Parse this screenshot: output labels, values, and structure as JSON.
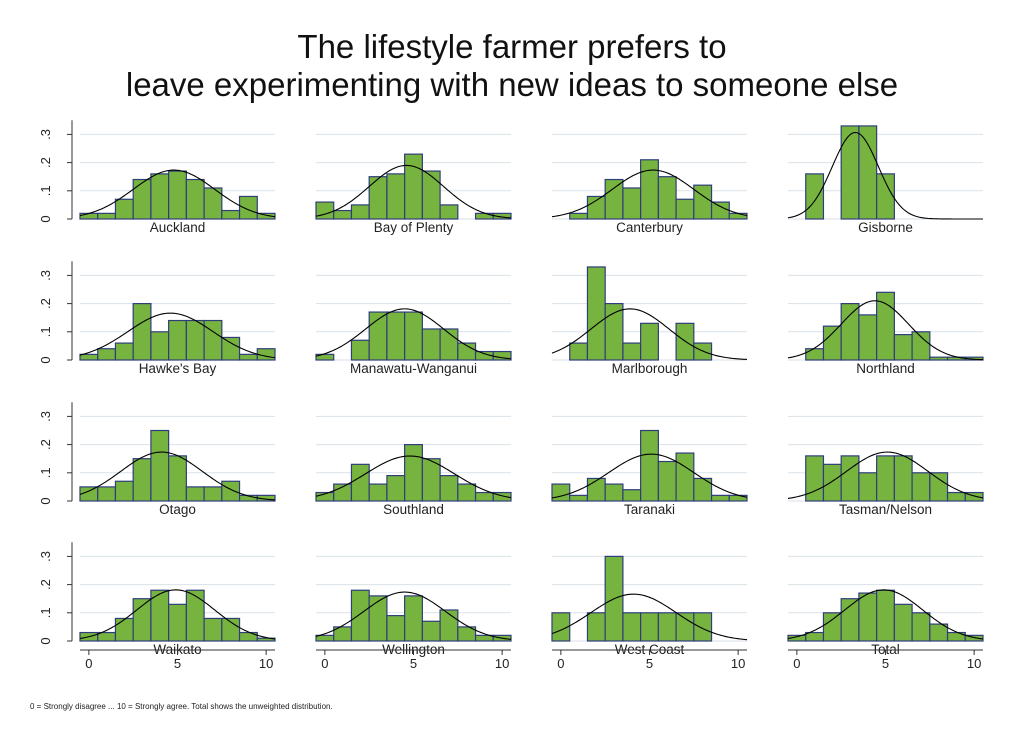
{
  "title_lines": [
    "The lifestyle farmer prefers to",
    "leave experimenting with new ideas to someone else"
  ],
  "footnote": "0 = Strongly disagree ... 10 = Strongly agree. Total shows the unweighted distribution.",
  "colors": {
    "bar_fill": "#77b43f",
    "bar_stroke": "#2f3e7a",
    "curve": "#000000",
    "grid": "#d9e2ea"
  },
  "chart_data": {
    "type": "bar",
    "subtype": "histogram with fitted normal density curve, 4x4 grid of panels",
    "x_categories": [
      0,
      1,
      2,
      3,
      4,
      5,
      6,
      7,
      8,
      9,
      10
    ],
    "xlim": [
      -0.5,
      10.5
    ],
    "ylim": [
      0,
      0.35
    ],
    "x_ticks": [
      "0",
      "5",
      "10"
    ],
    "y_ticks": [
      "0",
      ".1",
      ".2",
      ".3"
    ],
    "grid": true,
    "panels": [
      {
        "name": "Auckland",
        "values": [
          0.02,
          0.02,
          0.07,
          0.14,
          0.16,
          0.17,
          0.14,
          0.11,
          0.03,
          0.08,
          0.02
        ],
        "mean": 4.8,
        "sd": 2.3
      },
      {
        "name": "Bay of Plenty",
        "values": [
          0.06,
          0.03,
          0.05,
          0.15,
          0.16,
          0.23,
          0.17,
          0.05,
          0.0,
          0.02,
          0.02
        ],
        "mean": 4.6,
        "sd": 2.1
      },
      {
        "name": "Canterbury",
        "values": [
          0.0,
          0.02,
          0.08,
          0.14,
          0.11,
          0.21,
          0.15,
          0.07,
          0.12,
          0.06,
          0.02
        ],
        "mean": 5.2,
        "sd": 2.3
      },
      {
        "name": "Gisborne",
        "values": [
          0.0,
          0.16,
          0.0,
          0.33,
          0.33,
          0.16,
          0.0,
          0.0,
          0.0,
          0.0,
          0.0
        ],
        "mean": 3.3,
        "sd": 1.3
      },
      {
        "name": "Hawke's Bay",
        "values": [
          0.02,
          0.04,
          0.06,
          0.2,
          0.1,
          0.14,
          0.14,
          0.14,
          0.08,
          0.02,
          0.04
        ],
        "mean": 4.6,
        "sd": 2.4
      },
      {
        "name": "Manawatu-Wanganui",
        "values": [
          0.02,
          0.0,
          0.07,
          0.17,
          0.17,
          0.17,
          0.11,
          0.11,
          0.06,
          0.03,
          0.03
        ],
        "mean": 4.5,
        "sd": 2.2
      },
      {
        "name": "Marlborough",
        "values": [
          0.0,
          0.06,
          0.33,
          0.2,
          0.06,
          0.13,
          0.0,
          0.13,
          0.06,
          0.0,
          0.0
        ],
        "mean": 3.9,
        "sd": 2.2
      },
      {
        "name": "Northland",
        "values": [
          0.0,
          0.04,
          0.12,
          0.2,
          0.16,
          0.24,
          0.09,
          0.1,
          0.01,
          0.01,
          0.01
        ],
        "mean": 4.4,
        "sd": 1.9
      },
      {
        "name": "Otago",
        "values": [
          0.05,
          0.05,
          0.07,
          0.15,
          0.25,
          0.16,
          0.05,
          0.05,
          0.07,
          0.02,
          0.02
        ],
        "mean": 4.1,
        "sd": 2.3
      },
      {
        "name": "Southland",
        "values": [
          0.03,
          0.06,
          0.13,
          0.06,
          0.09,
          0.2,
          0.15,
          0.09,
          0.06,
          0.03,
          0.03
        ],
        "mean": 4.8,
        "sd": 2.5
      },
      {
        "name": "Taranaki",
        "values": [
          0.06,
          0.02,
          0.08,
          0.06,
          0.04,
          0.25,
          0.14,
          0.17,
          0.08,
          0.02,
          0.02
        ],
        "mean": 5.1,
        "sd": 2.4
      },
      {
        "name": "Tasman/Nelson",
        "values": [
          0.0,
          0.16,
          0.13,
          0.16,
          0.1,
          0.16,
          0.16,
          0.1,
          0.1,
          0.03,
          0.03
        ],
        "mean": 5.1,
        "sd": 2.3
      },
      {
        "name": "Waikato",
        "values": [
          0.03,
          0.03,
          0.08,
          0.15,
          0.18,
          0.13,
          0.18,
          0.08,
          0.08,
          0.03,
          0.01
        ],
        "mean": 4.9,
        "sd": 2.2
      },
      {
        "name": "Wellington",
        "values": [
          0.02,
          0.05,
          0.18,
          0.16,
          0.09,
          0.16,
          0.07,
          0.11,
          0.05,
          0.02,
          0.02
        ],
        "mean": 4.5,
        "sd": 2.3
      },
      {
        "name": "West Coast",
        "values": [
          0.1,
          0.0,
          0.1,
          0.3,
          0.1,
          0.1,
          0.1,
          0.1,
          0.1,
          0.0,
          0.0
        ],
        "mean": 4.1,
        "sd": 2.4
      },
      {
        "name": "Total",
        "values": [
          0.02,
          0.03,
          0.1,
          0.15,
          0.17,
          0.18,
          0.13,
          0.1,
          0.06,
          0.03,
          0.02
        ],
        "mean": 4.9,
        "sd": 2.2
      }
    ]
  }
}
